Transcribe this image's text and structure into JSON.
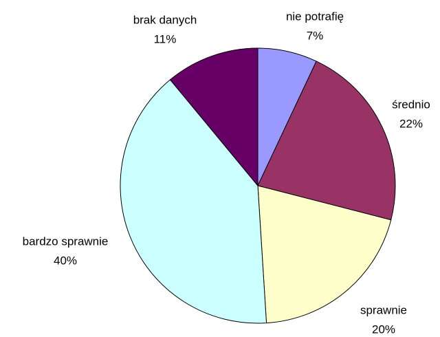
{
  "chart_data": {
    "type": "pie",
    "categories": [
      "nie potrafię",
      "średnio",
      "sprawnie",
      "bardzo sprawnie",
      "brak danych"
    ],
    "values": [
      7,
      22,
      20,
      40,
      11
    ],
    "value_labels": [
      "7%",
      "22%",
      "20%",
      "40%",
      "11%"
    ],
    "colors": [
      "#9999ff",
      "#993366",
      "#ffffcc",
      "#ccffff",
      "#660066"
    ]
  }
}
